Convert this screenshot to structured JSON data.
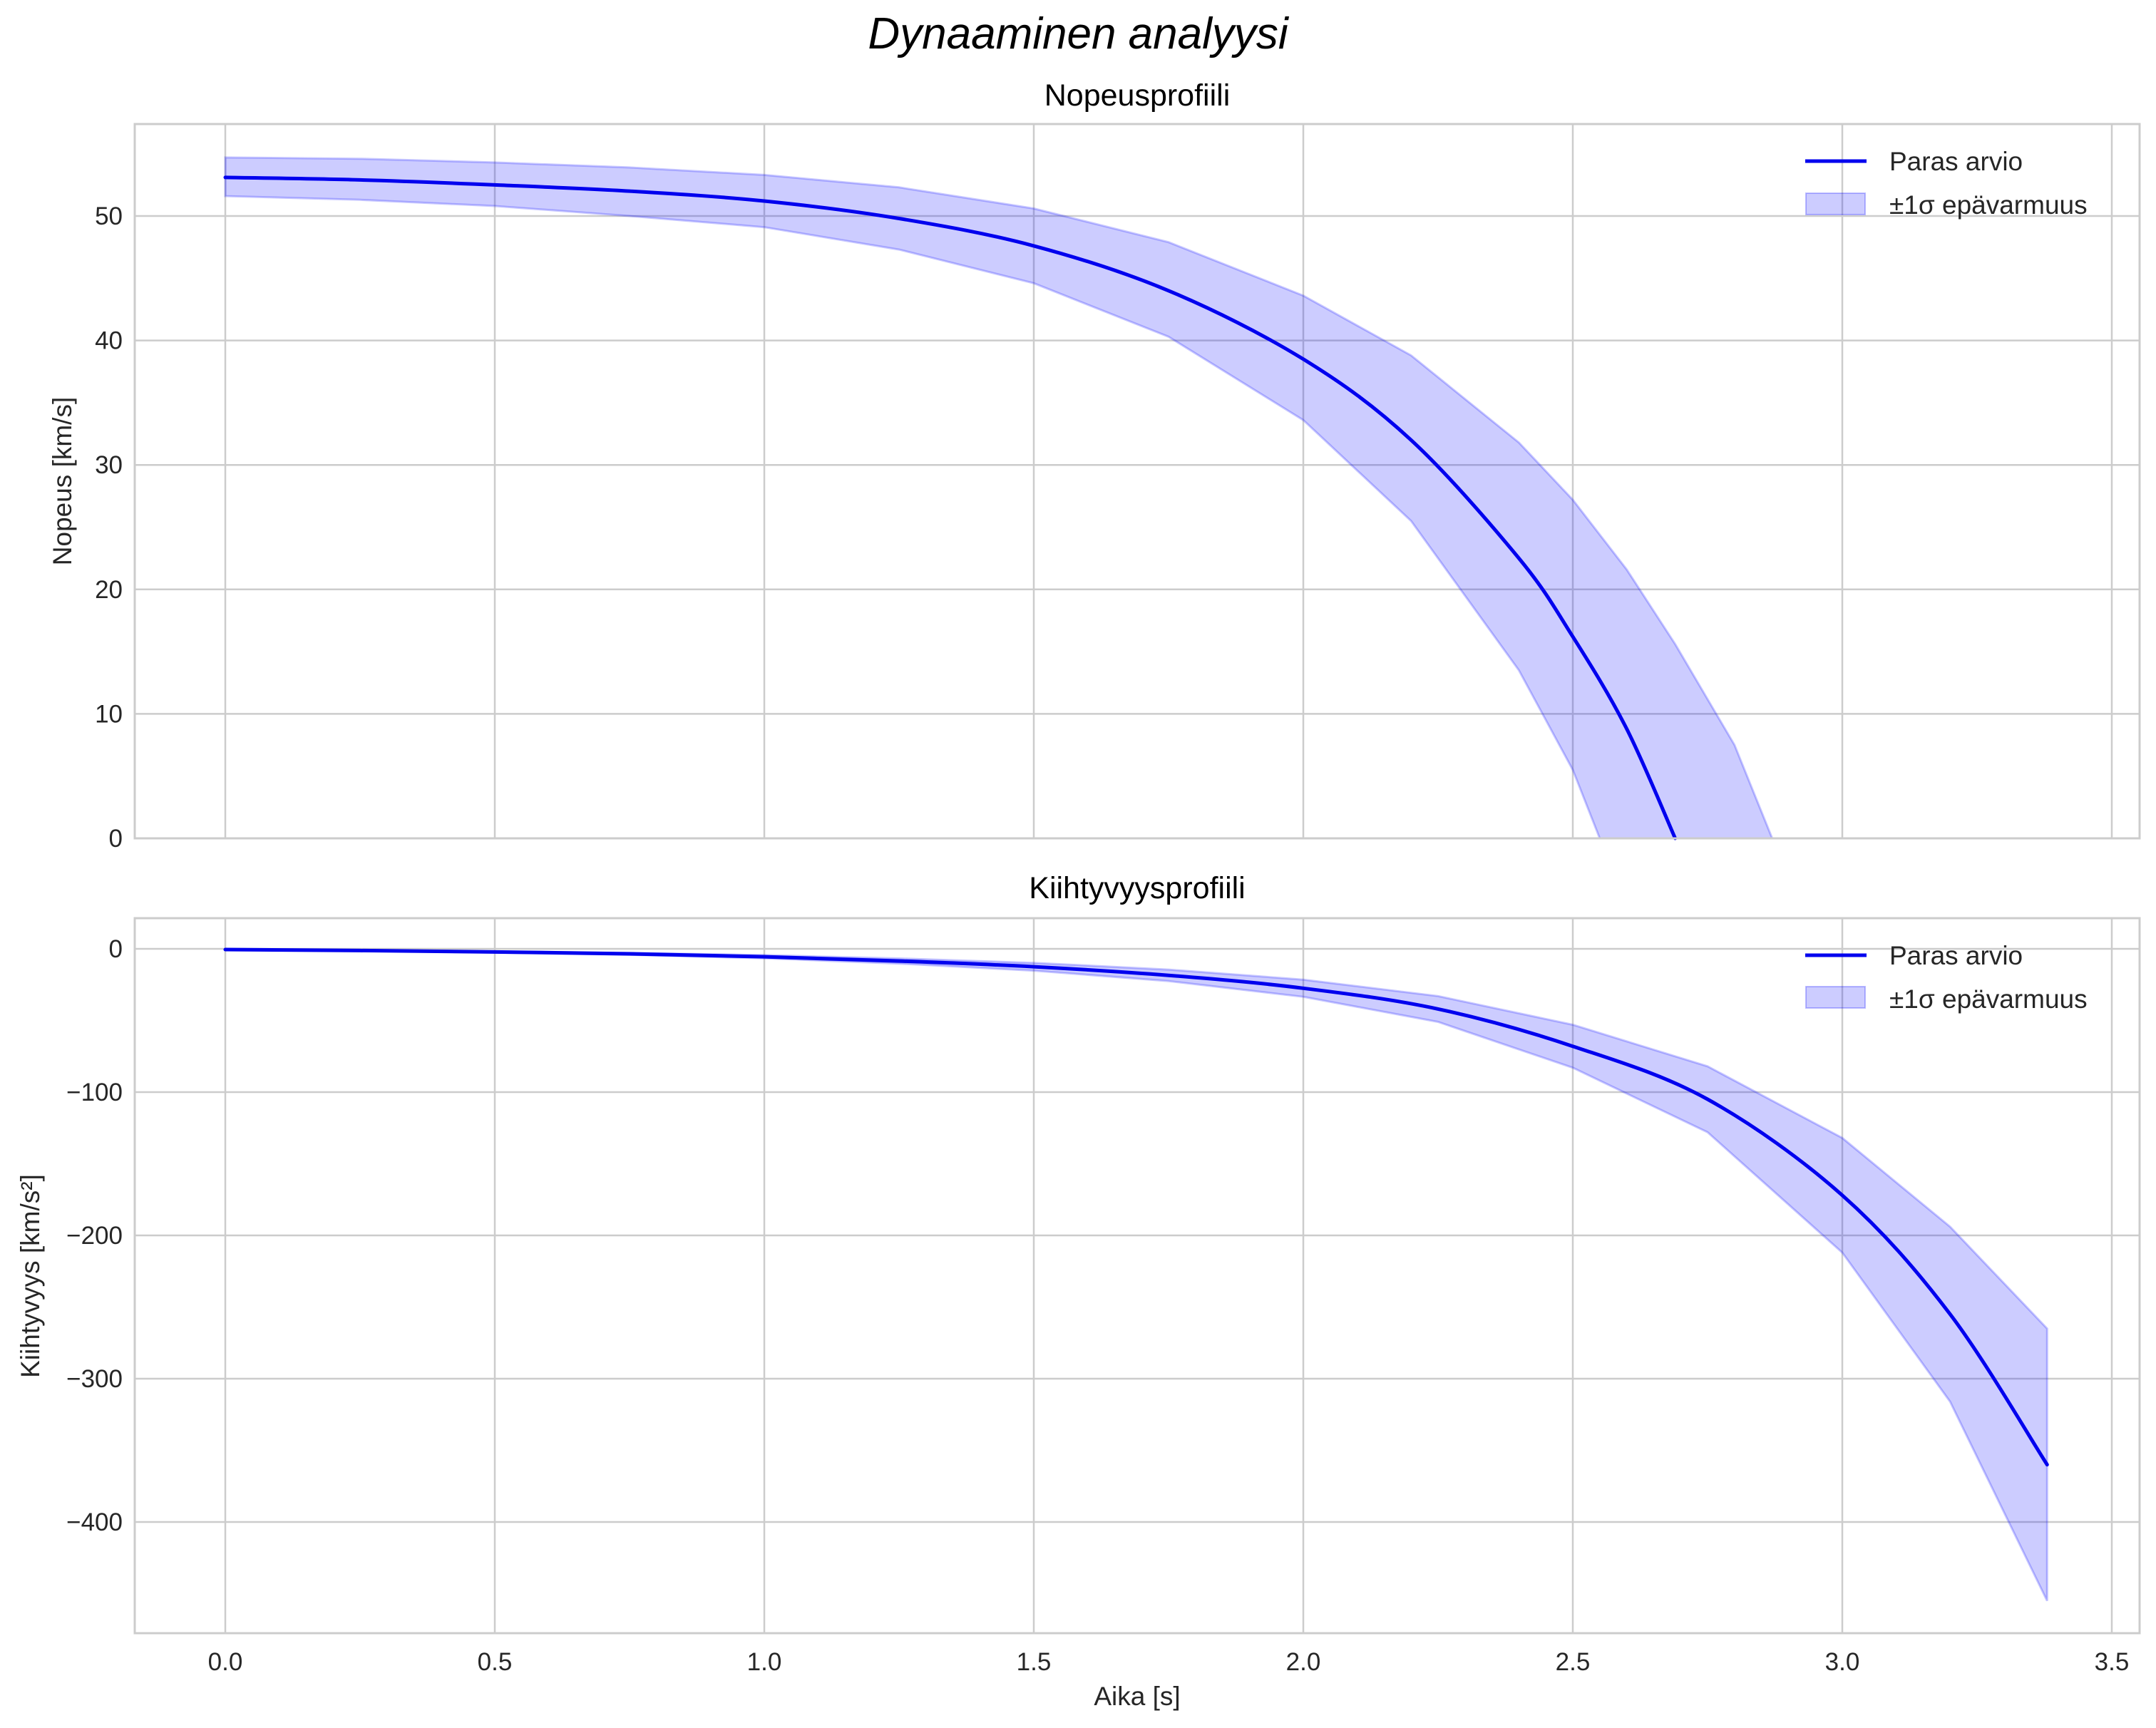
{
  "figure": {
    "suptitle": "Dynaaminen analyysi"
  },
  "chart_data": [
    {
      "type": "line",
      "title": "Nopeusprofiili",
      "xlabel": "",
      "ylabel": "Nopeus [km/s]",
      "xlim": [
        -0.17,
        3.55
      ],
      "ylim": [
        0,
        57.5
      ],
      "xticks": [
        "0.0",
        "0.5",
        "1.0",
        "1.5",
        "2.0",
        "2.5",
        "3.0",
        "3.5"
      ],
      "yticks": [
        "0",
        "10",
        "20",
        "30",
        "40",
        "50"
      ],
      "grid": true,
      "legend": {
        "position": "upper right",
        "entries": [
          "Paras arvio",
          "±1σ epävarmuus"
        ]
      },
      "x": [
        0.0,
        0.25,
        0.5,
        0.75,
        1.0,
        1.25,
        1.5,
        1.75,
        2.0,
        2.2,
        2.4,
        2.5,
        2.6,
        2.69,
        2.8,
        2.87
      ],
      "series": [
        {
          "name": "Paras arvio",
          "color": "#0000ee",
          "values": [
            53.1,
            52.9,
            52.5,
            52.0,
            51.2,
            49.8,
            47.6,
            44.0,
            38.5,
            32.0,
            22.5,
            16.2,
            8.8,
            0.0,
            null,
            null
          ]
        },
        {
          "name": "±1σ epävarmuus (upper)",
          "color": "#0000ff",
          "alpha": 0.2,
          "values": [
            54.7,
            54.6,
            54.3,
            53.9,
            53.3,
            52.3,
            50.6,
            47.9,
            43.6,
            38.8,
            31.8,
            27.2,
            21.6,
            15.6,
            7.5,
            0.0
          ]
        },
        {
          "name": "±1σ epävarmuus (lower)",
          "color": "#0000ff",
          "alpha": 0.2,
          "values": [
            51.6,
            51.3,
            50.8,
            50.0,
            49.1,
            47.3,
            44.6,
            40.3,
            33.6,
            25.5,
            13.5,
            5.5,
            null,
            null,
            null,
            null
          ]
        }
      ],
      "band_lower_zero_cross": 2.55
    },
    {
      "type": "line",
      "title": "Kiihtyvyysprofiili",
      "xlabel": "Aika [s]",
      "ylabel": "Kiihtyvyys [km/s²]",
      "xlim": [
        -0.17,
        3.55
      ],
      "ylim": [
        -462,
        22
      ],
      "xticks": [
        "0.0",
        "0.5",
        "1.0",
        "1.5",
        "2.0",
        "2.5",
        "3.0",
        "3.5"
      ],
      "yticks": [
        "0",
        "−100",
        "−200",
        "−300",
        "−400"
      ],
      "grid": true,
      "legend": {
        "position": "upper right",
        "entries": [
          "Paras arvio",
          "±1σ epävarmuus"
        ]
      },
      "x": [
        0.0,
        0.25,
        0.5,
        0.75,
        1.0,
        1.25,
        1.5,
        1.75,
        2.0,
        2.25,
        2.5,
        2.75,
        3.0,
        3.2,
        3.38
      ],
      "series": [
        {
          "name": "Paras arvio",
          "color": "#0000ee",
          "values": [
            -0.5,
            -1.2,
            -2.2,
            -3.5,
            -5.5,
            -8.5,
            -12.5,
            -18.5,
            -27.5,
            -42,
            -68,
            -105,
            -172,
            -255,
            -360
          ]
        },
        {
          "name": "±1σ epävarmuus (upper)",
          "color": "#0000ff",
          "alpha": 0.2,
          "values": [
            -0.4,
            -1.0,
            -1.8,
            -2.8,
            -4.4,
            -6.7,
            -9.8,
            -14.5,
            -21.5,
            -33,
            -53,
            -82,
            -132,
            -194,
            -265
          ]
        },
        {
          "name": "±1σ epävarmuus (lower)",
          "color": "#0000ff",
          "alpha": 0.2,
          "values": [
            -0.6,
            -1.4,
            -2.6,
            -4.2,
            -6.6,
            -10.3,
            -15.2,
            -22.5,
            -33.5,
            -51,
            -83,
            -128,
            -212,
            -316,
            -455
          ]
        }
      ]
    }
  ]
}
